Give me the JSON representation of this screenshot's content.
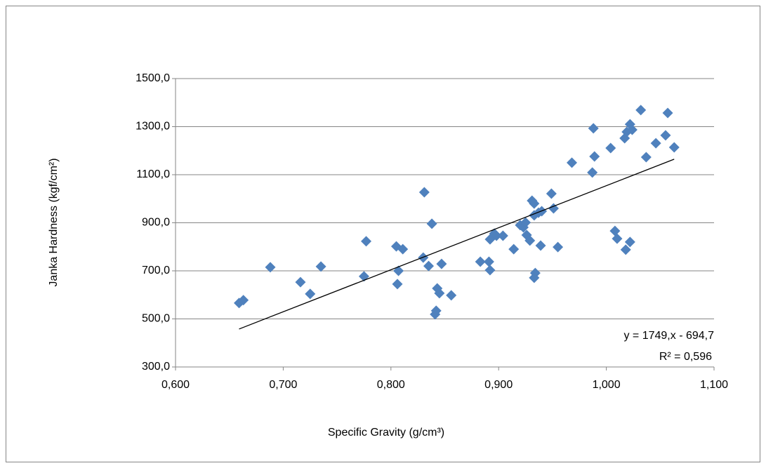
{
  "chart_data": {
    "type": "scatter",
    "xlabel": "Specific Gravity (g/cm³)",
    "ylabel": "Janka Hardness (kgf/cm²)",
    "color": "#4f81bd",
    "x": [
      0.659,
      0.663,
      0.688,
      0.716,
      0.725,
      0.735,
      0.775,
      0.777,
      0.805,
      0.807,
      0.806,
      0.811,
      0.831,
      0.83,
      0.835,
      0.838,
      0.841,
      0.842,
      0.843,
      0.845,
      0.847,
      0.856,
      0.883,
      0.891,
      0.892,
      0.892,
      0.896,
      0.898,
      0.904,
      0.914,
      0.92,
      0.923,
      0.925,
      0.926,
      0.929,
      0.931,
      0.933,
      0.933,
      0.934,
      0.933,
      0.937,
      0.939,
      0.94,
      0.949,
      0.951,
      0.955,
      0.968,
      0.988,
      0.989,
      0.987,
      1.004,
      1.008,
      1.01,
      1.017,
      1.019,
      1.018,
      1.022,
      1.022,
      1.024,
      1.032,
      1.037,
      1.046,
      1.055,
      1.057,
      1.063
    ],
    "values": [
      566,
      578,
      715,
      653,
      604,
      718,
      677,
      823,
      802,
      700,
      645,
      790,
      1027,
      755,
      720,
      896,
      519,
      534,
      627,
      607,
      729,
      598,
      738,
      738,
      703,
      831,
      855,
      846,
      846,
      790,
      890,
      881,
      901,
      849,
      826,
      992,
      980,
      931,
      691,
      671,
      942,
      805,
      948,
      1021,
      960,
      799,
      1150,
      1293,
      1176,
      1109,
      1211,
      866,
      834,
      1252,
      1278,
      788,
      1310,
      820,
      1287,
      1369,
      1173,
      1231,
      1264,
      1357,
      1214
    ],
    "xlim": [
      0.6,
      1.1
    ],
    "xticks": [
      {
        "value": 0.6,
        "label": "0,600"
      },
      {
        "value": 0.7,
        "label": "0,700"
      },
      {
        "value": 0.8,
        "label": "0,800"
      },
      {
        "value": 0.9,
        "label": "0,900"
      },
      {
        "value": 1.0,
        "label": "1,000"
      },
      {
        "value": 1.1,
        "label": "1,100"
      }
    ],
    "ylim": [
      300,
      1500
    ],
    "yticks": [
      {
        "value": 300,
        "label": "300,0"
      },
      {
        "value": 500,
        "label": "500,0"
      },
      {
        "value": 700,
        "label": "700,0"
      },
      {
        "value": 900,
        "label": "900,0"
      },
      {
        "value": 1100,
        "label": "1100,0"
      },
      {
        "value": 1300,
        "label": "1300,0"
      },
      {
        "value": 1500,
        "label": "1500,0"
      }
    ],
    "grid": true,
    "trendline": {
      "slope": 1749,
      "intercept": -694.7,
      "r2": 0.596,
      "label": "y = 1749,x - 694,7",
      "r2_label": "R² = 0,596"
    }
  }
}
